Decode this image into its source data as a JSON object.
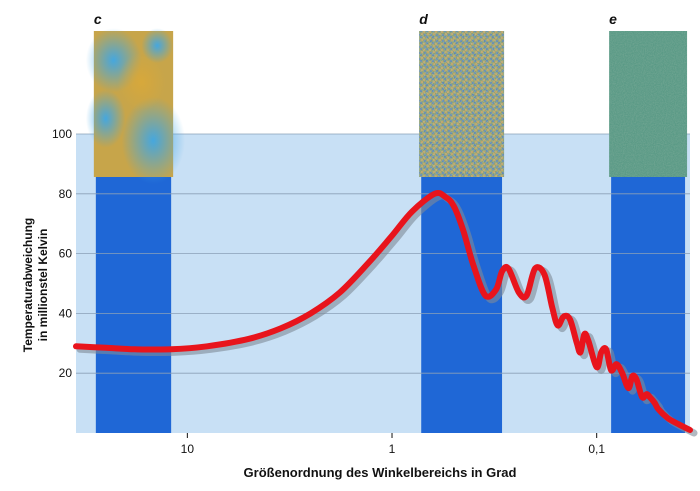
{
  "chart_data": {
    "type": "line",
    "title": "",
    "xlabel": "Größenordnung des Winkelbereichs in Grad",
    "ylabel_lines": [
      "Temperaturabweichung",
      "in millionstel Kelvin"
    ],
    "x_scale": "log",
    "x_reversed": true,
    "xlim": [
      35,
      0.035
    ],
    "ylim": [
      0,
      100
    ],
    "x_ticks": [
      {
        "value": 10,
        "label": "10"
      },
      {
        "value": 1,
        "label": "1"
      },
      {
        "value": 0.1,
        "label": "0,1"
      }
    ],
    "y_ticks": [
      20,
      40,
      60,
      80,
      100
    ],
    "grid": true,
    "highlight_bands": [
      {
        "from": 28,
        "to": 12
      },
      {
        "from": 0.72,
        "to": 0.29
      },
      {
        "from": 0.085,
        "to": 0.037
      }
    ],
    "series": [
      {
        "color": "#e8141c",
        "x": [
          35,
          25,
          18,
          12,
          8,
          5,
          3.5,
          2.5,
          1.8,
          1.3,
          1.0,
          0.8,
          0.62,
          0.55,
          0.5,
          0.45,
          0.4,
          0.35,
          0.31,
          0.29,
          0.27,
          0.24,
          0.22,
          0.2,
          0.18,
          0.165,
          0.155,
          0.145,
          0.135,
          0.125,
          0.12,
          0.115,
          0.11,
          0.1,
          0.095,
          0.09,
          0.085,
          0.08,
          0.075,
          0.07,
          0.067,
          0.064,
          0.06,
          0.057,
          0.055,
          0.052,
          0.05,
          0.045,
          0.04,
          0.035
        ],
        "y": [
          29,
          28.5,
          28,
          28,
          29,
          31.5,
          35,
          40,
          47,
          57,
          66,
          74,
          80,
          79,
          76,
          68,
          56,
          46,
          48,
          54,
          55,
          47,
          46,
          55,
          53,
          42,
          36,
          39,
          38,
          30,
          27,
          33,
          31,
          22,
          27,
          28,
          21,
          23,
          20,
          15,
          19,
          18,
          12,
          13,
          12,
          10,
          8,
          5,
          3,
          1
        ]
      }
    ],
    "thumbnails": [
      {
        "label": "c",
        "x_from": 28,
        "x_to": 12,
        "palette": [
          "#c7a54a",
          "#5fb4d8",
          "#3fa7e6"
        ]
      },
      {
        "label": "d",
        "x_from": 0.72,
        "x_to": 0.29,
        "palette": [
          "#8fa26a",
          "#5f8fb4",
          "#c4a060"
        ]
      },
      {
        "label": "e",
        "x_from": 0.085,
        "x_to": 0.037,
        "palette": [
          "#5a9a86",
          "#66a18e",
          "#4e8f80"
        ]
      }
    ]
  }
}
